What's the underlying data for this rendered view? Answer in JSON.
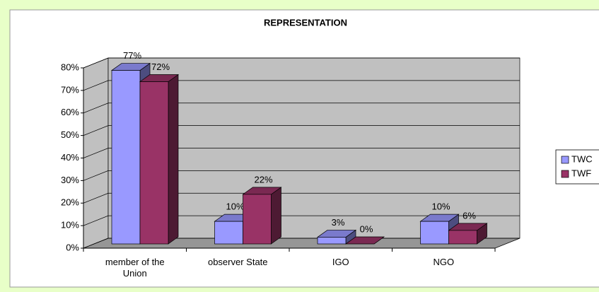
{
  "chart_data": {
    "type": "bar3d",
    "title": "REPRESENTATION",
    "categories": [
      "member of the Union",
      "observer State",
      "IGO",
      "NGO"
    ],
    "series": [
      {
        "name": "TWC",
        "color": "#9999ff",
        "values": [
          77,
          10,
          3,
          10
        ],
        "value_labels": [
          "77%",
          "10%",
          "3%",
          "10%"
        ]
      },
      {
        "name": "TWF",
        "color": "#993366",
        "values": [
          72,
          22,
          0,
          6
        ],
        "value_labels": [
          "72%",
          "22%",
          "0%",
          "6%"
        ]
      }
    ],
    "ylim": [
      0,
      80
    ],
    "yticks": [
      {
        "value": 0,
        "label": "0%"
      },
      {
        "value": 10,
        "label": "10%"
      },
      {
        "value": 20,
        "label": "20%"
      },
      {
        "value": 30,
        "label": "30%"
      },
      {
        "value": 40,
        "label": "40%"
      },
      {
        "value": 50,
        "label": "50%"
      },
      {
        "value": 60,
        "label": "60%"
      },
      {
        "value": 70,
        "label": "70%"
      },
      {
        "value": 80,
        "label": "80%"
      }
    ],
    "grid": true,
    "legend": "right"
  }
}
